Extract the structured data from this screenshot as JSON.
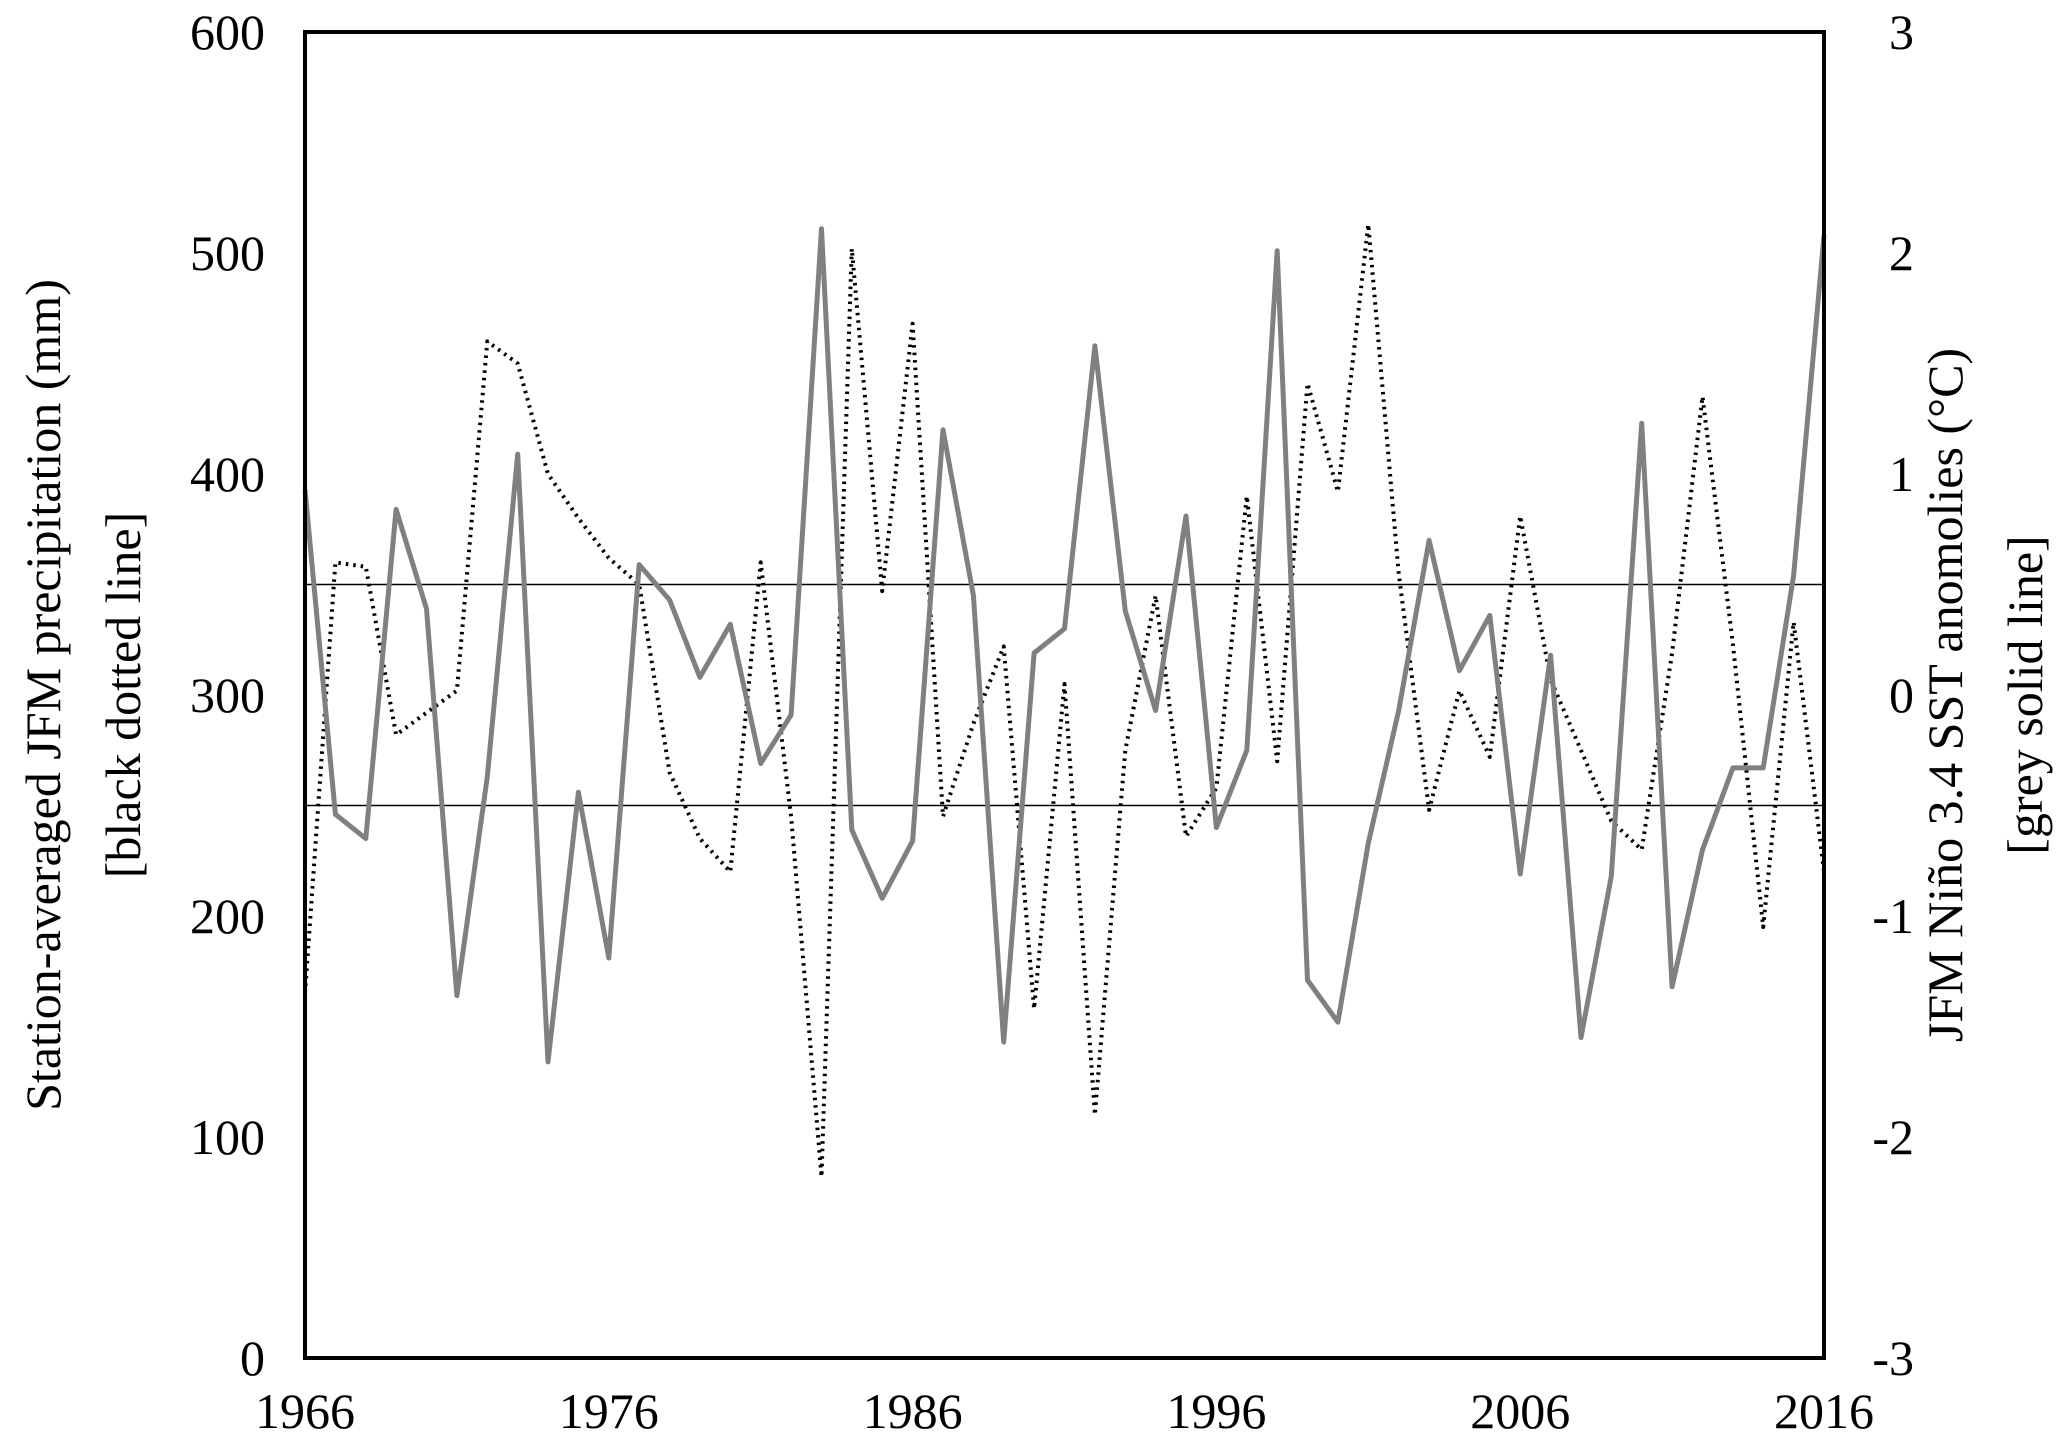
{
  "chart_data": {
    "type": "line",
    "x": [
      1966,
      1967,
      1968,
      1969,
      1970,
      1971,
      1972,
      1973,
      1974,
      1975,
      1976,
      1977,
      1978,
      1979,
      1980,
      1981,
      1982,
      1983,
      1984,
      1985,
      1986,
      1987,
      1988,
      1989,
      1990,
      1991,
      1992,
      1993,
      1994,
      1995,
      1996,
      1997,
      1998,
      1999,
      2000,
      2001,
      2002,
      2003,
      2004,
      2005,
      2006,
      2007,
      2008,
      2009,
      2010,
      2011,
      2012,
      2013,
      2014,
      2015,
      2016
    ],
    "xlim": [
      1966,
      2016
    ],
    "x_ticks": [
      "1966",
      "1976",
      "1986",
      "1996",
      "2006",
      "2016"
    ],
    "left_axis": {
      "label_line1": "Station-averaged JFM precipitation (mm)",
      "label_line2": "[black dotted line]",
      "ylim": [
        0,
        600
      ],
      "ticks": [
        "0",
        "100",
        "200",
        "300",
        "400",
        "500",
        "600"
      ]
    },
    "right_axis": {
      "label_line1": "JFM Niño 3.4 SST anomolies (°C)",
      "label_line2": "[grey solid line]",
      "ylim": [
        -3,
        3
      ],
      "ticks": [
        "-3",
        "-2",
        "-1",
        "0",
        "1",
        "2",
        "3"
      ]
    },
    "series": [
      {
        "axis": "left",
        "style": "dotted",
        "color": "#000000",
        "values": [
          165,
          360,
          358,
          282,
          292,
          302,
          460,
          450,
          400,
          380,
          362,
          350,
          265,
          235,
          220,
          360,
          245,
          82,
          502,
          347,
          468,
          245,
          287,
          322,
          158,
          305,
          110,
          275,
          345,
          236,
          258,
          390,
          270,
          441,
          392,
          513,
          355,
          248,
          302,
          272,
          381,
          307,
          275,
          243,
          230,
          319,
          435,
          323,
          195,
          333,
          220
        ]
      },
      {
        "axis": "right",
        "style": "solid",
        "color": "#808080",
        "values": [
          0.93,
          -0.54,
          -0.65,
          0.84,
          0.39,
          -1.36,
          -0.37,
          1.09,
          -1.66,
          -0.44,
          -1.19,
          0.59,
          0.43,
          0.08,
          0.32,
          -0.31,
          -0.09,
          2.11,
          -0.61,
          -0.92,
          -0.66,
          1.2,
          0.45,
          -1.57,
          0.19,
          0.3,
          1.58,
          0.38,
          -0.07,
          0.81,
          -0.6,
          -0.25,
          2.01,
          -1.29,
          -1.48,
          -0.67,
          -0.07,
          0.7,
          0.11,
          0.36,
          -0.81,
          0.18,
          -1.55,
          -0.82,
          1.23,
          -1.32,
          -0.7,
          -0.33,
          -0.33,
          0.54,
          2.08
        ]
      }
    ],
    "reference_lines_right": [
      0.5,
      -0.5
    ]
  }
}
